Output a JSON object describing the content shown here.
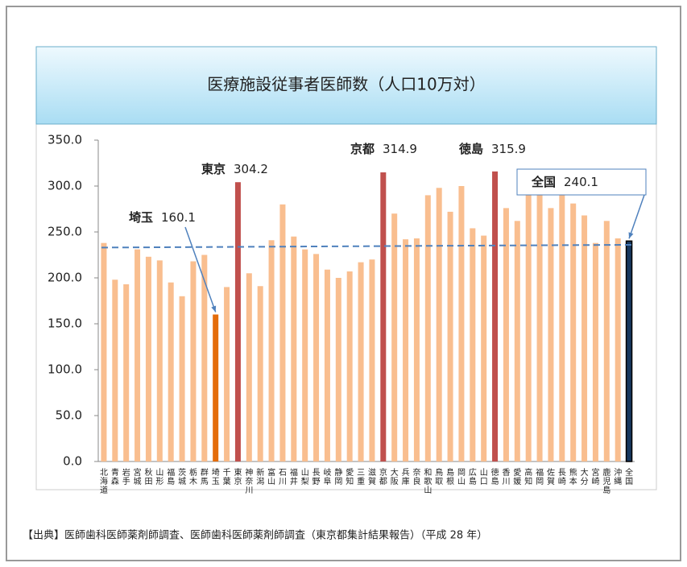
{
  "chart_data": {
    "type": "bar",
    "title": "医療施設従事者医師数（人口10万対）",
    "source": "【出典】医師歯科医師薬剤師調査、医師歯科医師薬剤師調査（東京都集計結果報告）（平成 28 年）",
    "categories": [
      "北海道",
      "青森",
      "岩手",
      "宮城",
      "秋田",
      "山形",
      "福島",
      "茨城",
      "栃木",
      "群馬",
      "埼玉",
      "千葉",
      "東京",
      "神奈川",
      "新潟",
      "富山",
      "石川",
      "福井",
      "山梨",
      "長野",
      "岐阜",
      "静岡",
      "愛知",
      "三重",
      "滋賀",
      "京都",
      "大阪",
      "兵庫",
      "奈良",
      "和歌山",
      "鳥取",
      "島根",
      "岡山",
      "広島",
      "山口",
      "徳島",
      "香川",
      "愛媛",
      "高知",
      "福岡",
      "佐賀",
      "長崎",
      "熊本",
      "大分",
      "宮崎",
      "鹿児島",
      "沖縄",
      "全国"
    ],
    "values": [
      238,
      198,
      193,
      231,
      223,
      219,
      195,
      180,
      218,
      225,
      160.1,
      190,
      304.2,
      205,
      191,
      241,
      280,
      245,
      231,
      226,
      209,
      200,
      207,
      217,
      220,
      314.9,
      270,
      242,
      243,
      290,
      298,
      272,
      300,
      254,
      246,
      315.9,
      276,
      262,
      295,
      293,
      276,
      295,
      281,
      268,
      238,
      262,
      243,
      240.1
    ],
    "color": "#f9be8f",
    "highlight_colors": {
      "埼玉": "#e46c0a",
      "東京": "#c0504d",
      "京都": "#c0504d",
      "徳島": "#c0504d",
      "全国": "#17375e"
    },
    "average_line": [
      233,
      236
    ],
    "average_line_color": "#4f81bd",
    "annotations": [
      {
        "label": "埼玉",
        "value": 160.1
      },
      {
        "label": "東京",
        "value": 304.2
      },
      {
        "label": "京都",
        "value": 314.9
      },
      {
        "label": "徳島",
        "value": 315.9
      },
      {
        "label": "全国",
        "value": 240.1
      }
    ],
    "ylim": [
      0,
      350
    ],
    "yticks": [
      {
        "value": 0,
        "label": "0.0"
      },
      {
        "value": 50,
        "label": "50.0"
      },
      {
        "value": 100,
        "label": "100.0"
      },
      {
        "value": 150,
        "label": "150.0"
      },
      {
        "value": 200,
        "label": "200.0"
      },
      {
        "value": 250,
        "label": "250.0"
      },
      {
        "value": 300,
        "label": "300.0"
      },
      {
        "value": 350,
        "label": "350.0"
      }
    ],
    "grid": true
  }
}
